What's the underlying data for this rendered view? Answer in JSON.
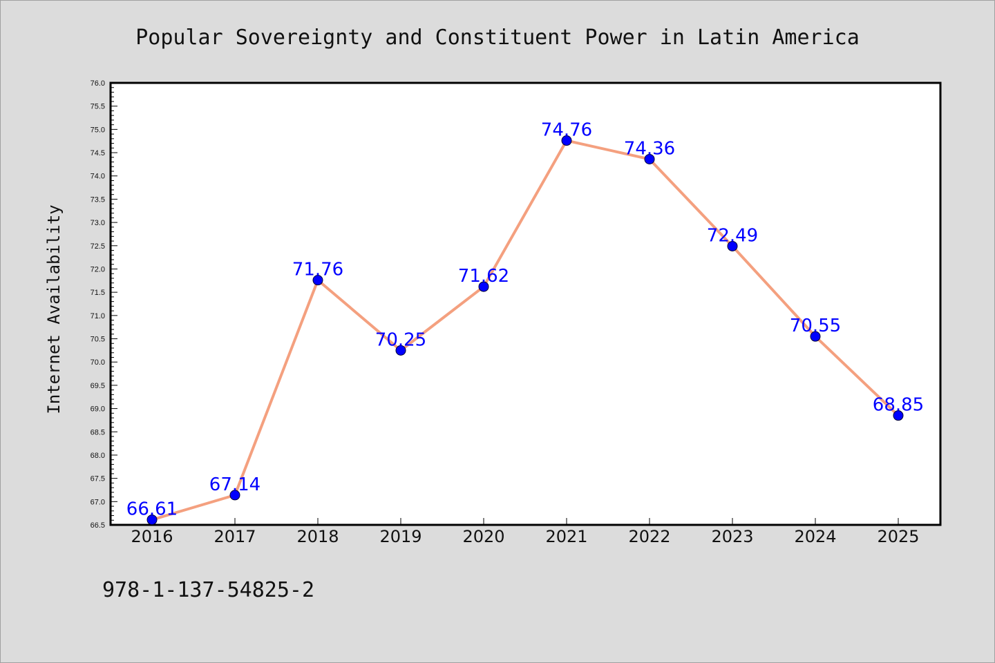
{
  "chart_data": {
    "type": "line",
    "title": "Popular Sovereignty and Constituent Power in Latin America",
    "xlabel": "",
    "ylabel": "Internet Availability",
    "x": [
      "2016",
      "2017",
      "2018",
      "2019",
      "2020",
      "2021",
      "2022",
      "2023",
      "2024",
      "2025"
    ],
    "series": [
      {
        "values": [
          66.61,
          67.14,
          71.76,
          70.25,
          71.62,
          74.76,
          74.36,
          72.49,
          70.55,
          68.85
        ],
        "data_labels": [
          "66.61",
          "67.14",
          "71.76",
          "70.25",
          "71.62",
          "74.76",
          "74.36",
          "72.49",
          "70.55",
          "68.85"
        ],
        "line_color": "#f4a07f",
        "marker_color": "#0000ff"
      }
    ],
    "ylim": [
      66.5,
      76.0
    ],
    "yticks": [
      "66.5",
      "67.0",
      "67.5",
      "68.0",
      "68.5",
      "69.0",
      "69.5",
      "70.0",
      "70.5",
      "71.0",
      "71.5",
      "72.0",
      "72.5",
      "73.0",
      "73.5",
      "74.0",
      "74.5",
      "75.0",
      "75.5",
      "76.0"
    ],
    "grid": false,
    "legend": "none"
  },
  "footer": {
    "isbn": "978-1-137-54825-2"
  }
}
